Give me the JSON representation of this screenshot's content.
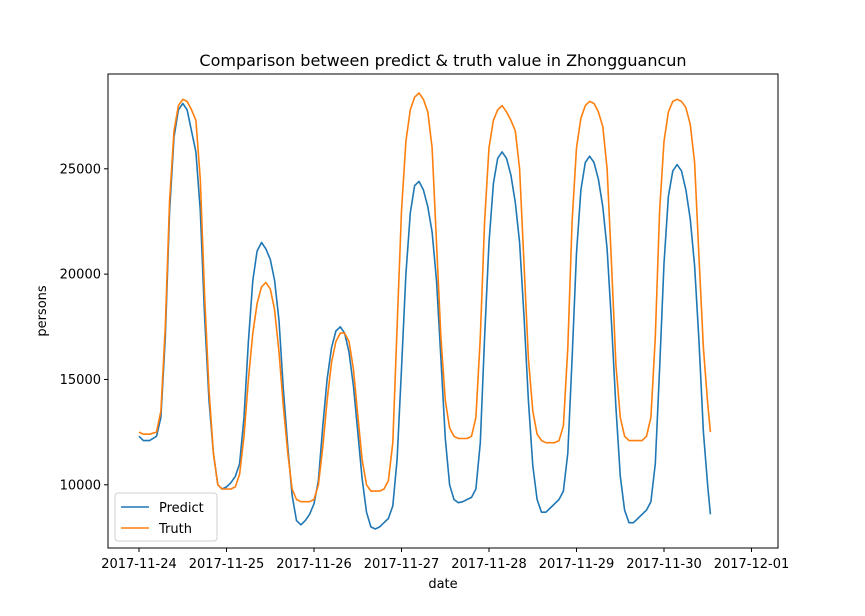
{
  "chart_data": {
    "type": "line",
    "title": "Comparison between predict & truth value in Zhongguancun",
    "xlabel": "date",
    "ylabel": "persons",
    "x_ticks": [
      "2017-11-24",
      "2017-11-25",
      "2017-11-26",
      "2017-11-27",
      "2017-11-28",
      "2017-11-29",
      "2017-11-30",
      "2017-12-01"
    ],
    "y_ticks": [
      "10000",
      "15000",
      "20000",
      "25000"
    ],
    "ylim": [
      7000,
      29500
    ],
    "grid": false,
    "legend_position": "lower-left",
    "x_day_start": "2017-11-24",
    "series": [
      {
        "name": "Predict",
        "color": "#1f77b4",
        "points": [
          [
            0.0,
            12300
          ],
          [
            0.05,
            12100
          ],
          [
            0.12,
            12100
          ],
          [
            0.2,
            12300
          ],
          [
            0.25,
            13200
          ],
          [
            0.3,
            17000
          ],
          [
            0.35,
            23000
          ],
          [
            0.4,
            26500
          ],
          [
            0.45,
            27800
          ],
          [
            0.5,
            28100
          ],
          [
            0.55,
            27800
          ],
          [
            0.6,
            26800
          ],
          [
            0.65,
            25800
          ],
          [
            0.7,
            23000
          ],
          [
            0.75,
            18000
          ],
          [
            0.8,
            14000
          ],
          [
            0.85,
            11500
          ],
          [
            0.9,
            10000
          ],
          [
            0.95,
            9800
          ],
          [
            1.0,
            9900
          ],
          [
            1.05,
            10100
          ],
          [
            1.1,
            10400
          ],
          [
            1.15,
            11000
          ],
          [
            1.2,
            13200
          ],
          [
            1.25,
            16800
          ],
          [
            1.3,
            19700
          ],
          [
            1.35,
            21100
          ],
          [
            1.4,
            21500
          ],
          [
            1.45,
            21200
          ],
          [
            1.5,
            20700
          ],
          [
            1.55,
            19700
          ],
          [
            1.6,
            17800
          ],
          [
            1.65,
            14500
          ],
          [
            1.7,
            11800
          ],
          [
            1.75,
            9500
          ],
          [
            1.8,
            8300
          ],
          [
            1.85,
            8100
          ],
          [
            1.9,
            8300
          ],
          [
            1.95,
            8600
          ],
          [
            2.0,
            9100
          ],
          [
            2.05,
            10200
          ],
          [
            2.1,
            12800
          ],
          [
            2.15,
            15000
          ],
          [
            2.2,
            16500
          ],
          [
            2.25,
            17300
          ],
          [
            2.3,
            17500
          ],
          [
            2.35,
            17200
          ],
          [
            2.4,
            16300
          ],
          [
            2.45,
            14700
          ],
          [
            2.5,
            12500
          ],
          [
            2.55,
            10300
          ],
          [
            2.6,
            8700
          ],
          [
            2.65,
            8000
          ],
          [
            2.7,
            7900
          ],
          [
            2.75,
            8000
          ],
          [
            2.8,
            8200
          ],
          [
            2.85,
            8400
          ],
          [
            2.9,
            9000
          ],
          [
            2.95,
            11200
          ],
          [
            3.0,
            15500
          ],
          [
            3.05,
            20000
          ],
          [
            3.1,
            22900
          ],
          [
            3.15,
            24200
          ],
          [
            3.2,
            24400
          ],
          [
            3.25,
            24000
          ],
          [
            3.3,
            23200
          ],
          [
            3.35,
            22000
          ],
          [
            3.4,
            19700
          ],
          [
            3.45,
            16000
          ],
          [
            3.5,
            12200
          ],
          [
            3.55,
            10000
          ],
          [
            3.6,
            9300
          ],
          [
            3.65,
            9150
          ],
          [
            3.7,
            9200
          ],
          [
            3.75,
            9300
          ],
          [
            3.8,
            9400
          ],
          [
            3.85,
            9800
          ],
          [
            3.9,
            12000
          ],
          [
            3.95,
            17000
          ],
          [
            4.0,
            21500
          ],
          [
            4.05,
            24300
          ],
          [
            4.1,
            25500
          ],
          [
            4.15,
            25800
          ],
          [
            4.2,
            25500
          ],
          [
            4.25,
            24700
          ],
          [
            4.3,
            23400
          ],
          [
            4.35,
            21500
          ],
          [
            4.4,
            18000
          ],
          [
            4.45,
            14000
          ],
          [
            4.5,
            10900
          ],
          [
            4.55,
            9300
          ],
          [
            4.6,
            8700
          ],
          [
            4.65,
            8700
          ],
          [
            4.7,
            8900
          ],
          [
            4.75,
            9100
          ],
          [
            4.8,
            9300
          ],
          [
            4.85,
            9700
          ],
          [
            4.9,
            11500
          ],
          [
            4.95,
            16000
          ],
          [
            5.0,
            21000
          ],
          [
            5.05,
            24000
          ],
          [
            5.1,
            25300
          ],
          [
            5.15,
            25600
          ],
          [
            5.2,
            25300
          ],
          [
            5.25,
            24500
          ],
          [
            5.3,
            23200
          ],
          [
            5.35,
            21200
          ],
          [
            5.4,
            17700
          ],
          [
            5.45,
            13700
          ],
          [
            5.5,
            10400
          ],
          [
            5.55,
            8800
          ],
          [
            5.6,
            8200
          ],
          [
            5.65,
            8200
          ],
          [
            5.7,
            8400
          ],
          [
            5.75,
            8600
          ],
          [
            5.8,
            8800
          ],
          [
            5.85,
            9200
          ],
          [
            5.9,
            11000
          ],
          [
            5.95,
            15500
          ],
          [
            6.0,
            20500
          ],
          [
            6.05,
            23700
          ],
          [
            6.1,
            24900
          ],
          [
            6.15,
            25200
          ],
          [
            6.2,
            24900
          ],
          [
            6.25,
            24000
          ],
          [
            6.3,
            22600
          ],
          [
            6.35,
            20400
          ],
          [
            6.4,
            16800
          ],
          [
            6.45,
            12500
          ],
          [
            6.5,
            9900
          ],
          [
            6.53,
            8600
          ]
        ]
      },
      {
        "name": "Truth",
        "color": "#ff7f0e",
        "points": [
          [
            0.0,
            12500
          ],
          [
            0.05,
            12400
          ],
          [
            0.12,
            12400
          ],
          [
            0.2,
            12500
          ],
          [
            0.25,
            13500
          ],
          [
            0.3,
            17500
          ],
          [
            0.35,
            23500
          ],
          [
            0.4,
            26800
          ],
          [
            0.45,
            28000
          ],
          [
            0.5,
            28300
          ],
          [
            0.55,
            28200
          ],
          [
            0.6,
            27800
          ],
          [
            0.65,
            27300
          ],
          [
            0.7,
            24500
          ],
          [
            0.75,
            19000
          ],
          [
            0.8,
            14500
          ],
          [
            0.85,
            11500
          ],
          [
            0.9,
            10000
          ],
          [
            0.95,
            9800
          ],
          [
            1.0,
            9800
          ],
          [
            1.05,
            9800
          ],
          [
            1.1,
            9900
          ],
          [
            1.15,
            10500
          ],
          [
            1.2,
            12300
          ],
          [
            1.25,
            15000
          ],
          [
            1.3,
            17200
          ],
          [
            1.35,
            18600
          ],
          [
            1.4,
            19400
          ],
          [
            1.45,
            19600
          ],
          [
            1.5,
            19300
          ],
          [
            1.55,
            18300
          ],
          [
            1.6,
            16300
          ],
          [
            1.65,
            13700
          ],
          [
            1.7,
            11500
          ],
          [
            1.75,
            9800
          ],
          [
            1.8,
            9300
          ],
          [
            1.85,
            9200
          ],
          [
            1.9,
            9200
          ],
          [
            1.95,
            9200
          ],
          [
            2.0,
            9300
          ],
          [
            2.05,
            10000
          ],
          [
            2.1,
            11800
          ],
          [
            2.15,
            14000
          ],
          [
            2.2,
            15800
          ],
          [
            2.25,
            16800
          ],
          [
            2.3,
            17200
          ],
          [
            2.35,
            17200
          ],
          [
            2.4,
            16800
          ],
          [
            2.45,
            15500
          ],
          [
            2.5,
            13300
          ],
          [
            2.55,
            11200
          ],
          [
            2.6,
            10000
          ],
          [
            2.65,
            9700
          ],
          [
            2.7,
            9700
          ],
          [
            2.75,
            9700
          ],
          [
            2.8,
            9800
          ],
          [
            2.85,
            10200
          ],
          [
            2.9,
            12000
          ],
          [
            2.95,
            17500
          ],
          [
            3.0,
            23000
          ],
          [
            3.05,
            26300
          ],
          [
            3.1,
            27800
          ],
          [
            3.15,
            28400
          ],
          [
            3.2,
            28600
          ],
          [
            3.25,
            28300
          ],
          [
            3.3,
            27700
          ],
          [
            3.35,
            26000
          ],
          [
            3.4,
            21500
          ],
          [
            3.45,
            17000
          ],
          [
            3.5,
            14000
          ],
          [
            3.55,
            12700
          ],
          [
            3.6,
            12300
          ],
          [
            3.65,
            12200
          ],
          [
            3.7,
            12200
          ],
          [
            3.75,
            12200
          ],
          [
            3.8,
            12300
          ],
          [
            3.85,
            13200
          ],
          [
            3.9,
            17000
          ],
          [
            3.95,
            22500
          ],
          [
            4.0,
            26000
          ],
          [
            4.05,
            27300
          ],
          [
            4.1,
            27800
          ],
          [
            4.15,
            28000
          ],
          [
            4.2,
            27700
          ],
          [
            4.25,
            27300
          ],
          [
            4.3,
            26800
          ],
          [
            4.35,
            25000
          ],
          [
            4.4,
            20500
          ],
          [
            4.45,
            16000
          ],
          [
            4.5,
            13500
          ],
          [
            4.55,
            12400
          ],
          [
            4.6,
            12100
          ],
          [
            4.65,
            12000
          ],
          [
            4.7,
            12000
          ],
          [
            4.75,
            12000
          ],
          [
            4.8,
            12100
          ],
          [
            4.85,
            12800
          ],
          [
            4.9,
            16500
          ],
          [
            4.95,
            22500
          ],
          [
            5.0,
            26000
          ],
          [
            5.05,
            27400
          ],
          [
            5.1,
            28000
          ],
          [
            5.15,
            28200
          ],
          [
            5.2,
            28100
          ],
          [
            5.25,
            27700
          ],
          [
            5.3,
            27000
          ],
          [
            5.35,
            25000
          ],
          [
            5.4,
            20500
          ],
          [
            5.45,
            15700
          ],
          [
            5.5,
            13200
          ],
          [
            5.55,
            12300
          ],
          [
            5.6,
            12100
          ],
          [
            5.65,
            12100
          ],
          [
            5.7,
            12100
          ],
          [
            5.75,
            12100
          ],
          [
            5.8,
            12300
          ],
          [
            5.85,
            13200
          ],
          [
            5.9,
            17000
          ],
          [
            5.95,
            23000
          ],
          [
            6.0,
            26300
          ],
          [
            6.05,
            27700
          ],
          [
            6.1,
            28200
          ],
          [
            6.15,
            28300
          ],
          [
            6.2,
            28200
          ],
          [
            6.25,
            27900
          ],
          [
            6.3,
            27100
          ],
          [
            6.35,
            25300
          ],
          [
            6.4,
            20800
          ],
          [
            6.45,
            16500
          ],
          [
            6.5,
            13800
          ],
          [
            6.53,
            12500
          ]
        ]
      }
    ]
  }
}
